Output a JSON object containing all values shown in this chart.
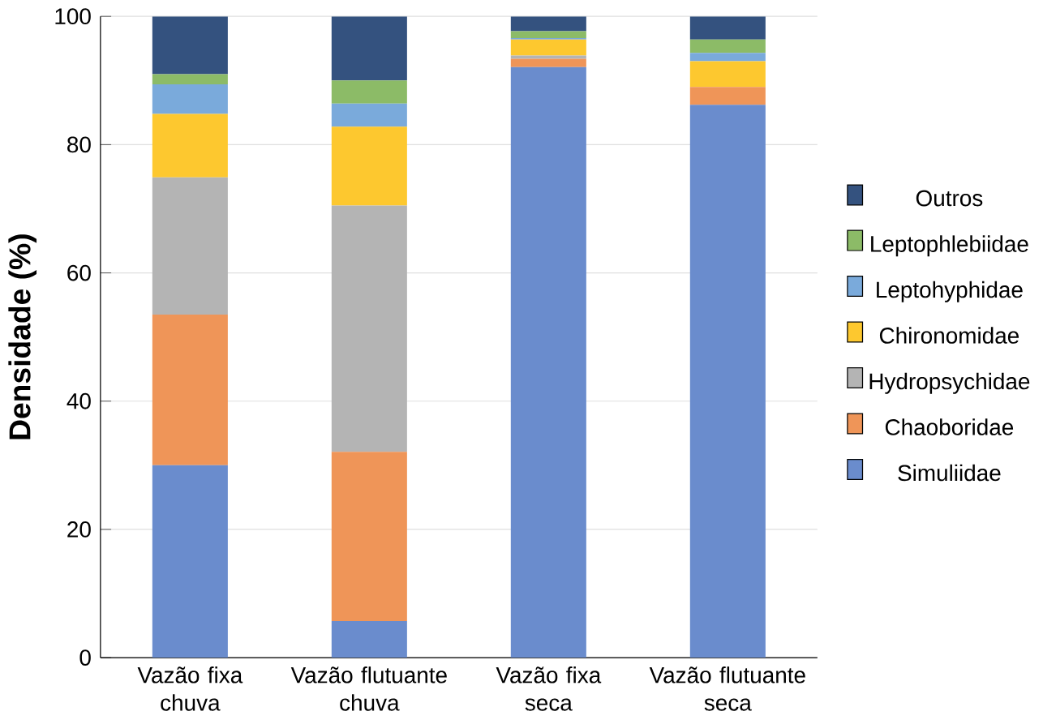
{
  "chart_data": {
    "type": "bar",
    "stacked": true,
    "ylabel": "Densidade (%)",
    "categories": [
      "Vazão fixa chuva",
      "Vazão flutuante chuva",
      "Vazão fixa seca",
      "Vazão flutuante seca"
    ],
    "series": [
      {
        "name": "Simuliidae",
        "color": "#6a8ccd",
        "values": [
          30.0,
          5.7,
          92.1,
          86.2
        ]
      },
      {
        "name": "Chaoboridae",
        "color": "#ef9558",
        "values": [
          23.5,
          26.4,
          1.3,
          2.8
        ]
      },
      {
        "name": "Hydropsychidae",
        "color": "#b4b4b4",
        "values": [
          21.4,
          38.4,
          0.5,
          0
        ]
      },
      {
        "name": "Chironomidae",
        "color": "#fdc82f",
        "values": [
          9.9,
          12.3,
          2.5,
          4.0
        ]
      },
      {
        "name": "Leptohyphidae",
        "color": "#7aaadb",
        "values": [
          4.6,
          3.6,
          0.2,
          1.3
        ]
      },
      {
        "name": "Leptophlebiidae",
        "color": "#8cbb67",
        "values": [
          1.6,
          3.6,
          1.1,
          2.1
        ]
      },
      {
        "name": "Outros",
        "color": "#34527f",
        "values": [
          9.0,
          10.0,
          2.3,
          3.6
        ]
      }
    ],
    "ylim": [
      0,
      100
    ],
    "yticks": [
      0,
      20,
      40,
      60,
      80,
      100
    ],
    "grid": "y",
    "legend": "right"
  }
}
